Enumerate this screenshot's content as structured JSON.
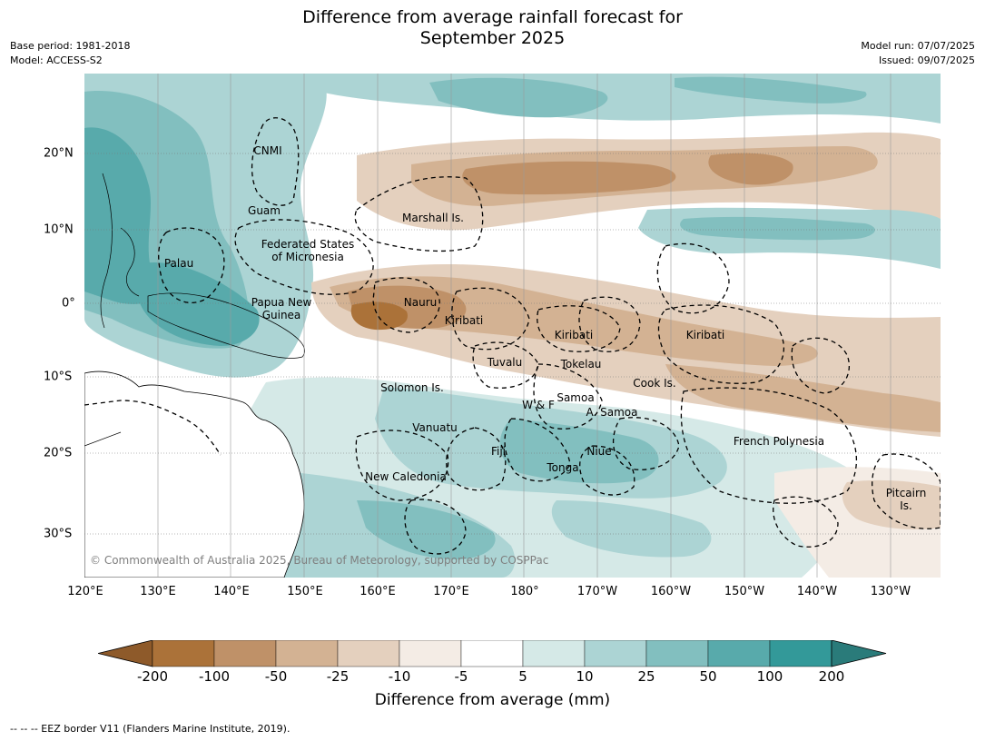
{
  "title_line1": "Difference from average rainfall forecast for",
  "title_line2": "September 2025",
  "base_period": "Base period: 1981-2018",
  "model": "Model: ACCESS-S2",
  "model_run": "Model run: 07/07/2025",
  "issued": "Issued: 09/07/2025",
  "copyright": "© Commonwealth of Australia 2025, Bureau of Meteorology, supported by COSPPac",
  "lat_ticks": [
    "20°N",
    "10°N",
    "0°",
    "10°S",
    "20°S",
    "30°S"
  ],
  "lon_ticks": [
    "120°E",
    "130°E",
    "140°E",
    "150°E",
    "160°E",
    "170°E",
    "180°",
    "170°W",
    "160°W",
    "150°W",
    "140°W",
    "130°W"
  ],
  "region_labels": {
    "cnmi": "CNMI",
    "guam": "Guam",
    "marshall": "Marshall Is.",
    "fsm_1": "Federated States",
    "fsm_2": "of Micronesia",
    "palau": "Palau",
    "png_1": "Papua New",
    "png_2": "Guinea",
    "nauru": "Nauru",
    "kiribati_w": "Kiribati",
    "kiribati_c": "Kiribati",
    "kiribati_e": "Kiribati",
    "tuvalu": "Tuvalu",
    "tokelau": "Tokelau",
    "cook": "Cook Is.",
    "solomon": "Solomon Is.",
    "samoa": "Samoa",
    "wf": "W & F",
    "asamoa": "A. Samoa",
    "vanuatu": "Vanuatu",
    "fiji": "Fiji",
    "niue": "Niue",
    "tonga": "Tonga",
    "frpoly": "French Polynesia",
    "newcal": "New Caledonia",
    "pitcairn_1": "Pitcairn",
    "pitcairn_2": "Is."
  },
  "colorbar": {
    "ticks": [
      "-200",
      "-100",
      "-50",
      "-25",
      "-10",
      "-5",
      "5",
      "10",
      "25",
      "50",
      "100",
      "200"
    ],
    "colors": [
      "#8e5a2a",
      "#ab7239",
      "#bf9168",
      "#d3b293",
      "#e4d0be",
      "#f4ece5",
      "#ffffff",
      "#d5e9e7",
      "#acd4d4",
      "#82bfbf",
      "#58aaab",
      "#339999",
      "#2a7b7a"
    ],
    "label": "Difference from average (mm)"
  },
  "footer": "--  --  -- EEZ border V11 (Flanders Marine Institute, 2019)."
}
